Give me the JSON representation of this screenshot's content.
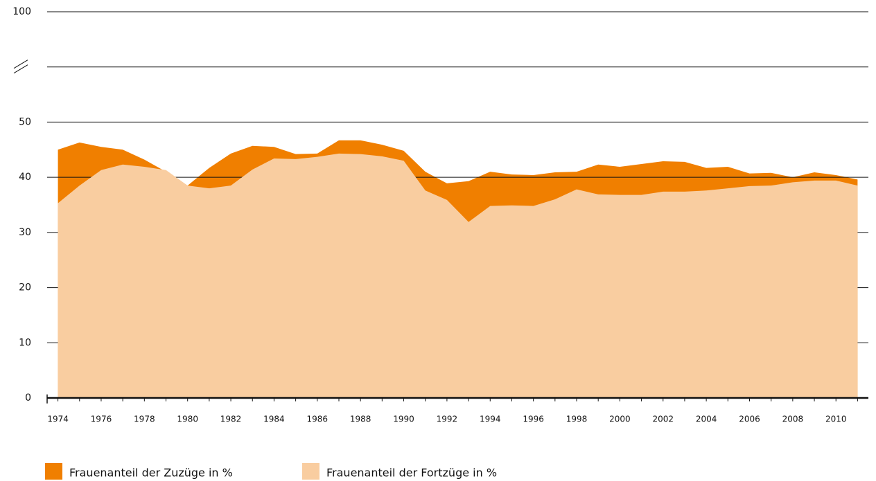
{
  "chart_data": {
    "type": "area",
    "x": [
      1974,
      1975,
      1976,
      1977,
      1978,
      1979,
      1980,
      1981,
      1982,
      1983,
      1984,
      1985,
      1986,
      1987,
      1988,
      1989,
      1990,
      1991,
      1992,
      1993,
      1994,
      1995,
      1996,
      1997,
      1998,
      1999,
      2000,
      2001,
      2002,
      2003,
      2004,
      2005,
      2006,
      2007,
      2008,
      2009,
      2010,
      2011
    ],
    "series": [
      {
        "name": "Frauenanteil der Zuzüge in %",
        "color": "#f07f00",
        "values": [
          45.0,
          46.3,
          45.5,
          45.0,
          43.2,
          41.0,
          38.5,
          41.7,
          44.3,
          45.7,
          45.5,
          44.2,
          44.3,
          46.7,
          46.7,
          45.9,
          44.8,
          41.0,
          38.9,
          39.3,
          41.0,
          40.5,
          40.4,
          40.9,
          41.0,
          42.3,
          41.9,
          42.4,
          42.9,
          42.8,
          41.7,
          41.9,
          40.7,
          40.8,
          40.0,
          40.9,
          40.4,
          39.6
        ]
      },
      {
        "name": "Frauenanteil der Fortzüge in %",
        "color": "#f9cda0",
        "values": [
          35.3,
          38.5,
          41.3,
          42.3,
          41.9,
          41.3,
          38.5,
          38.0,
          38.5,
          41.4,
          43.4,
          43.3,
          43.7,
          44.3,
          44.2,
          43.8,
          43.0,
          37.6,
          35.9,
          31.9,
          34.8,
          34.9,
          34.8,
          36.0,
          37.8,
          36.9,
          36.8,
          36.8,
          37.4,
          37.4,
          37.6,
          38.0,
          38.4,
          38.5,
          39.1,
          39.4,
          39.4,
          38.5
        ]
      }
    ],
    "xlim": [
      1973.5,
      2011.5
    ],
    "xticks": [
      1974,
      1976,
      1978,
      1980,
      1982,
      1984,
      1986,
      1988,
      1990,
      1992,
      1994,
      1996,
      1998,
      2000,
      2002,
      2004,
      2006,
      2008,
      2010
    ],
    "minor_xticks": [
      1975,
      1977,
      1979,
      1981,
      1983,
      1985,
      1987,
      1989,
      1991,
      1993,
      1995,
      1997,
      1999,
      2001,
      2003,
      2005,
      2007,
      2009,
      2011
    ],
    "ylim": [
      0,
      100
    ],
    "yticks": [
      0,
      10,
      20,
      30,
      40,
      50,
      100
    ],
    "axis_break": [
      60,
      100
    ],
    "grid": true
  }
}
